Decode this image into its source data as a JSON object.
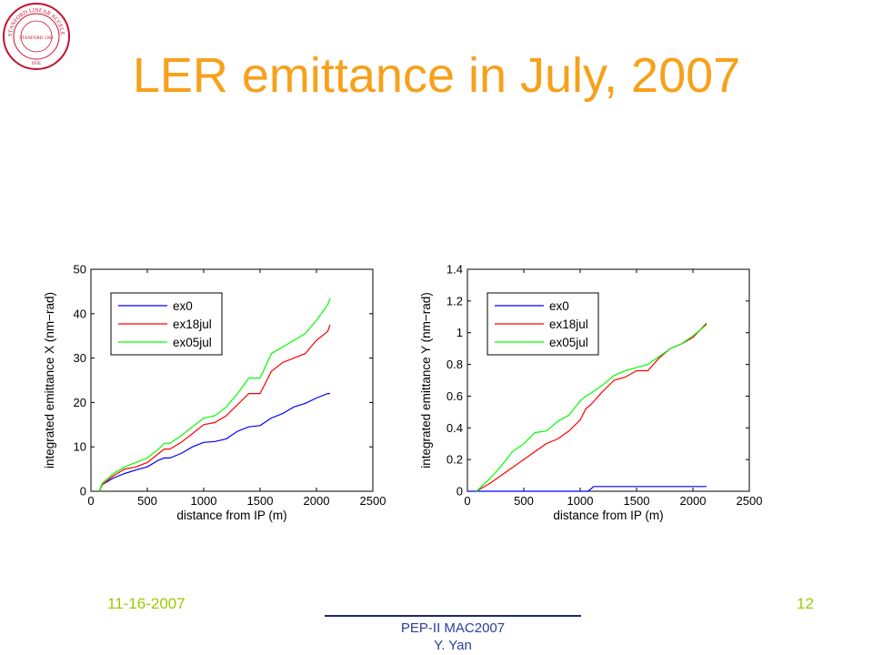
{
  "slide": {
    "title": "LER emittance in July, 2007",
    "date": "11-16-2007",
    "page_number": "12",
    "footer_line1": "PEP-II MAC2007",
    "footer_line2": "Y. Yan",
    "logo_text": "STANFORD LINEAR ACCELERATOR CENTER",
    "logo_inner": "STANFORD 1962",
    "logo_bottom": "DOE"
  },
  "colors": {
    "title": "#f7a11a",
    "footer_green": "#99cc00",
    "footer_blue": "#2a3f9a",
    "logo_red": "#c8102e",
    "ex0": "#0000ff",
    "ex18jul": "#ff0000",
    "ex05jul": "#00ff00"
  },
  "chart_data": [
    {
      "type": "line",
      "xlabel": "distance from IP (m)",
      "ylabel": "integrated emittance X (nm−rad)",
      "xlim": [
        0,
        2500
      ],
      "ylim": [
        0,
        50
      ],
      "xticks": [
        "0",
        "500",
        "1000",
        "1500",
        "2000",
        "2500"
      ],
      "yticks": [
        "0",
        "10",
        "20",
        "30",
        "40",
        "50"
      ],
      "legend": "top-left",
      "grid": false,
      "series": [
        {
          "name": "ex0",
          "color": "#0000ff",
          "x": [
            75,
            100,
            200,
            300,
            400,
            500,
            600,
            650,
            700,
            800,
            900,
            1000,
            1100,
            1200,
            1300,
            1400,
            1500,
            1600,
            1700,
            1800,
            1900,
            2000,
            2100,
            2120
          ],
          "y": [
            0,
            1.5,
            3,
            4,
            4.8,
            5.5,
            7,
            7.5,
            7.5,
            8.5,
            10,
            11,
            11.2,
            11.8,
            13.5,
            14.5,
            14.8,
            16.5,
            17.5,
            19,
            19.8,
            21,
            22,
            22
          ]
        },
        {
          "name": "ex18jul",
          "color": "#ff0000",
          "x": [
            75,
            100,
            200,
            300,
            400,
            500,
            600,
            650,
            700,
            800,
            900,
            1000,
            1100,
            1200,
            1300,
            1400,
            1500,
            1600,
            1700,
            1800,
            1900,
            2000,
            2100,
            2120
          ],
          "y": [
            0,
            1.5,
            3.5,
            5,
            5.5,
            6.5,
            8.5,
            9.5,
            9.5,
            11,
            13,
            15,
            15.5,
            17,
            19.5,
            22,
            22,
            27,
            29,
            30,
            31,
            34,
            36,
            37.5
          ]
        },
        {
          "name": "ex05jul",
          "color": "#00ff00",
          "x": [
            75,
            100,
            200,
            300,
            400,
            500,
            600,
            650,
            700,
            800,
            900,
            1000,
            1100,
            1200,
            1300,
            1400,
            1500,
            1600,
            1700,
            1800,
            1900,
            2000,
            2100,
            2120
          ],
          "y": [
            0,
            1.8,
            4,
            5.5,
            6.5,
            7.5,
            9.5,
            10.8,
            10.8,
            12.5,
            14.5,
            16.5,
            17,
            19,
            22,
            25.5,
            25.5,
            31,
            32.5,
            34,
            35.5,
            38.5,
            42,
            43.5
          ]
        }
      ]
    },
    {
      "type": "line",
      "xlabel": "distance from IP (m)",
      "ylabel": "integrated emittance Y (nm−rad)",
      "xlim": [
        0,
        2500
      ],
      "ylim": [
        0,
        1.4
      ],
      "xticks": [
        "0",
        "500",
        "1000",
        "1500",
        "2000",
        "2500"
      ],
      "yticks": [
        "0",
        "0.2",
        "0.4",
        "0.6",
        "0.8",
        "1",
        "1.2",
        "1.4"
      ],
      "legend": "top-left",
      "grid": false,
      "series": [
        {
          "name": "ex0",
          "color": "#0000ff",
          "x": [
            0,
            1070,
            1120,
            1200,
            2120
          ],
          "y": [
            0,
            0,
            0.03,
            0.03,
            0.03
          ]
        },
        {
          "name": "ex18jul",
          "color": "#ff0000",
          "x": [
            80,
            200,
            300,
            400,
            500,
            600,
            700,
            800,
            900,
            1000,
            1050,
            1100,
            1200,
            1300,
            1400,
            1500,
            1600,
            1700,
            1800,
            1900,
            2000,
            2120
          ],
          "y": [
            0,
            0.05,
            0.1,
            0.15,
            0.2,
            0.25,
            0.3,
            0.33,
            0.38,
            0.45,
            0.52,
            0.55,
            0.63,
            0.7,
            0.72,
            0.76,
            0.76,
            0.84,
            0.9,
            0.93,
            0.97,
            1.06
          ]
        },
        {
          "name": "ex05jul",
          "color": "#00ff00",
          "x": [
            80,
            200,
            300,
            400,
            500,
            600,
            700,
            800,
            900,
            1000,
            1050,
            1100,
            1200,
            1300,
            1400,
            1500,
            1600,
            1700,
            1800,
            1900,
            2000,
            2120
          ],
          "y": [
            0,
            0.08,
            0.16,
            0.25,
            0.3,
            0.37,
            0.38,
            0.44,
            0.48,
            0.57,
            0.6,
            0.62,
            0.67,
            0.73,
            0.76,
            0.78,
            0.8,
            0.85,
            0.9,
            0.93,
            0.98,
            1.05
          ]
        }
      ]
    }
  ]
}
